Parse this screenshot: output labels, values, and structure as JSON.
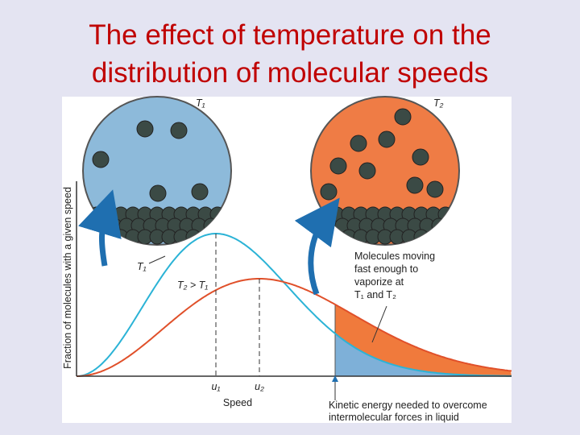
{
  "title": "The effect of temperature on the distribution of molecular speeds",
  "figure": {
    "circle_labels": [
      "T₁",
      "T₂"
    ],
    "curve_labels": [
      "T₁",
      "T₂ > T₁"
    ],
    "y_axis_label": "Fraction of molecules with a given speed",
    "x_axis_label": "Speed",
    "speed_marks": [
      "u₁",
      "u₂"
    ],
    "vaporize_note": [
      "Molecules moving",
      "fast enough to",
      "vaporize at",
      "T₁ and T₂"
    ],
    "energy_note": [
      "Kinetic energy needed to overcome",
      "intermolecular forces in liquid"
    ]
  }
}
